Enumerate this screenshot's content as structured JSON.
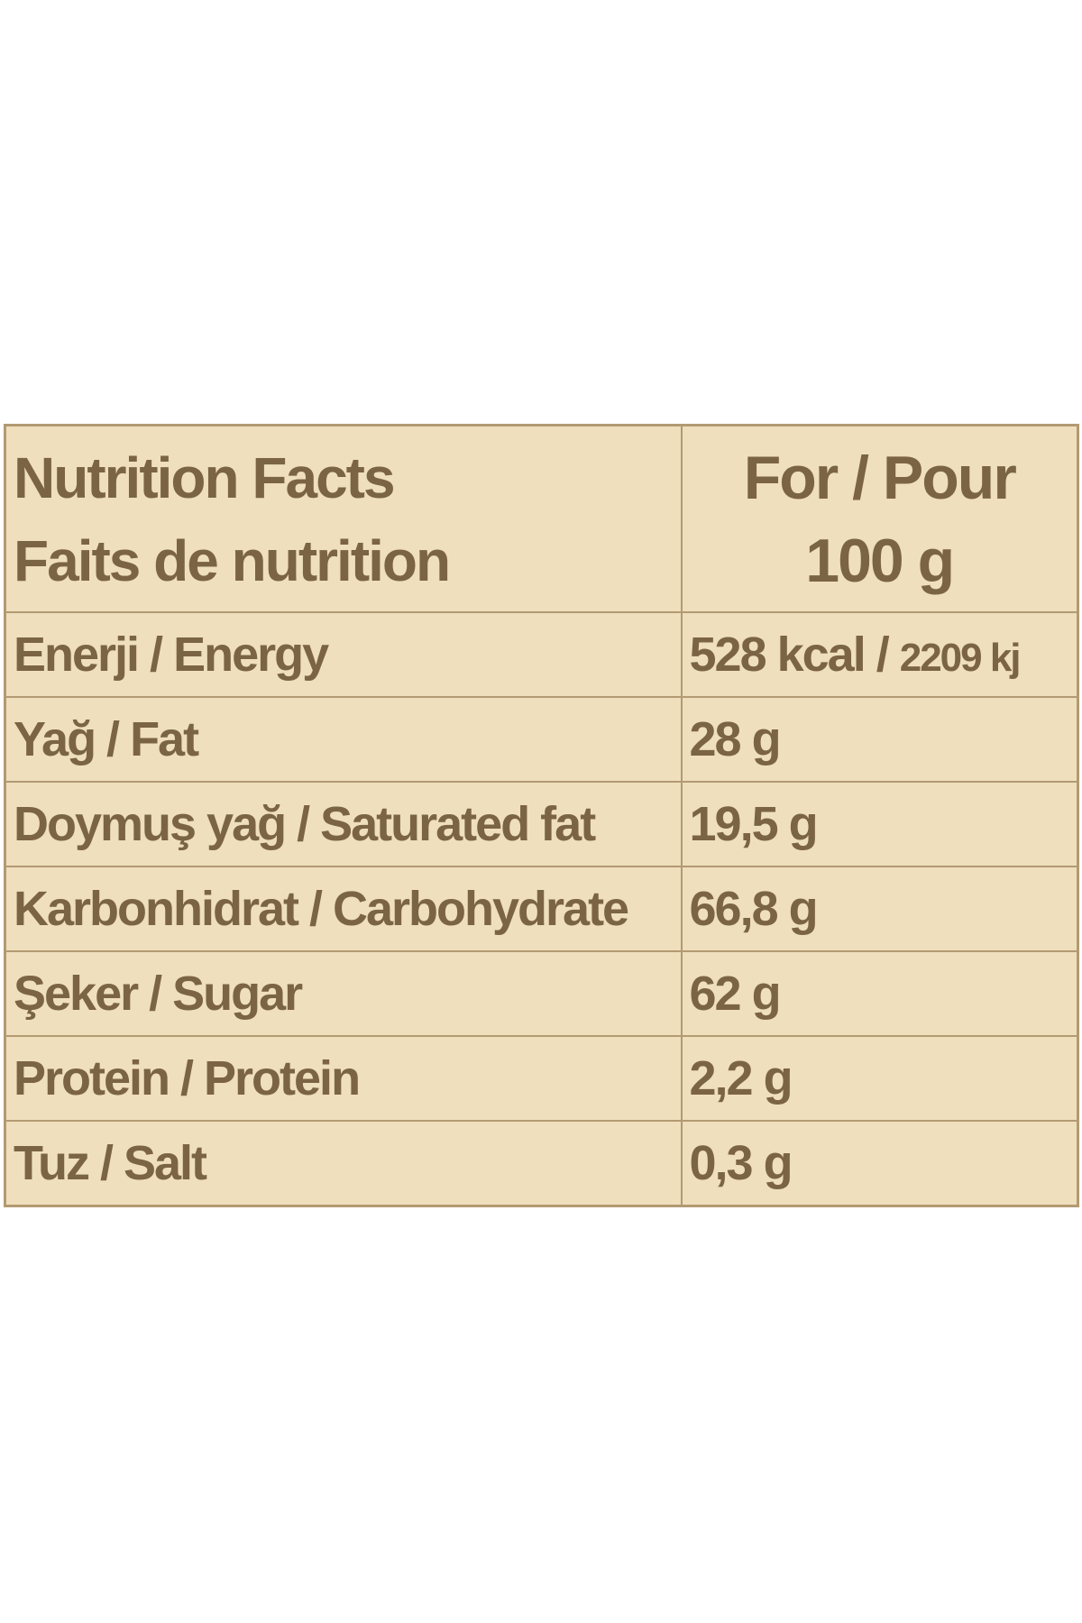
{
  "header": {
    "title_en": "Nutrition Facts",
    "title_fr": "Faits de nutrition",
    "per_line1": "For / Pour",
    "per_line2": "100 g"
  },
  "rows": [
    {
      "label": "Enerji / Energy",
      "value": "528 kcal / ",
      "value_extra": "2209 kj"
    },
    {
      "label": "Yağ / Fat",
      "value": "28 g"
    },
    {
      "label": "Doymuş yağ / Saturated fat",
      "value": "19,5 g"
    },
    {
      "label": "Karbonhidrat / Carbohydrate",
      "value": "66,8 g"
    },
    {
      "label": "Şeker / Sugar",
      "value": "62 g"
    },
    {
      "label": "Protein / Protein",
      "value": "2,2 g"
    },
    {
      "label": "Tuz / Salt",
      "value": "0,3 g"
    }
  ],
  "colors": {
    "background": "#efdfbc",
    "border": "#b39a73",
    "text": "#7b6444"
  }
}
